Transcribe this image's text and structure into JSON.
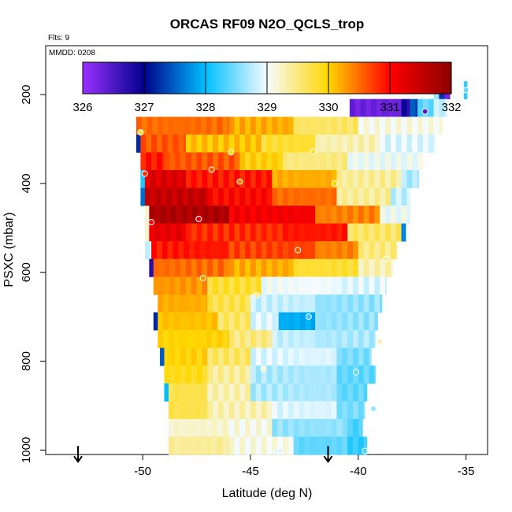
{
  "chart_data": {
    "type": "heatmap",
    "title": "ORCAS RF09 N2O_QCLS_trop",
    "subtitle": "Flts: 9",
    "inset_label": "MMDD: 0208",
    "xlabel": "Latitude (deg N)",
    "ylabel": "PSXC (mbar)",
    "xlim": [
      -54.5,
      -34
    ],
    "ylim": [
      1010,
      90
    ],
    "y_inverted": true,
    "x_ticks": [
      -50,
      -45,
      -40,
      -35
    ],
    "x_tick_labels": [
      "-50",
      "-45",
      "-40",
      "-35"
    ],
    "y_ticks": [
      200,
      400,
      600,
      800,
      1000
    ],
    "y_tick_labels": [
      "200",
      "400",
      "600",
      "800",
      "1000"
    ],
    "colorbar": {
      "min": 326,
      "max": 332,
      "ticks": [
        326,
        327,
        328,
        329,
        330,
        331,
        332
      ],
      "tick_labels": [
        "326",
        "327",
        "328",
        "329",
        "330",
        "331",
        "332"
      ],
      "colors": [
        "#9b30ff",
        "#00008b",
        "#00bfff",
        "#f5fbff",
        "#ffd700",
        "#ff0000",
        "#8b0000"
      ]
    },
    "lat_bin_width": 0.25,
    "pressure_bin_height": 40,
    "rows": [
      {
        "p": 190,
        "segments": [
          [
            -36.5,
            -36.25,
            328.7
          ],
          [
            -36.25,
            -36,
            327.2
          ],
          [
            -36,
            -35.75,
            326.3
          ],
          [
            -35.1,
            -34.95,
            328.3
          ]
        ]
      },
      {
        "p": 230,
        "segments": [
          [
            -40.4,
            -38,
            326.3
          ],
          [
            -38,
            -37.6,
            326.8
          ],
          [
            -37.6,
            -37.25,
            327.4
          ],
          [
            -37.25,
            -36.5,
            328.4
          ],
          [
            -36.5,
            -35.9,
            328.8
          ]
        ]
      },
      {
        "p": 270,
        "segments": [
          [
            -50.3,
            -46,
            330.5
          ],
          [
            -46,
            -43,
            330.2
          ],
          [
            -43,
            -40,
            329.6
          ],
          [
            -40,
            -36.1,
            329.1
          ]
        ]
      },
      {
        "p": 310,
        "segments": [
          [
            -50.3,
            -50.1,
            327.3
          ],
          [
            -50.1,
            -48,
            330.6
          ],
          [
            -48,
            -44.5,
            330.1
          ],
          [
            -44.5,
            -42,
            329.8
          ],
          [
            -42,
            -39,
            329.3
          ],
          [
            -39,
            -36.4,
            328.9
          ]
        ]
      },
      {
        "p": 350,
        "segments": [
          [
            -50.1,
            -49,
            330.9
          ],
          [
            -49,
            -45.5,
            330.6
          ],
          [
            -45.5,
            -43.5,
            330.0
          ],
          [
            -43.5,
            -40.5,
            329.5
          ],
          [
            -40.5,
            -37,
            329.0
          ]
        ]
      },
      {
        "p": 390,
        "segments": [
          [
            -50.1,
            -49.9,
            328.0
          ],
          [
            -49.9,
            -48,
            331.3
          ],
          [
            -48,
            -44,
            330.9
          ],
          [
            -44,
            -41,
            330.2
          ],
          [
            -41,
            -38,
            329.4
          ],
          [
            -38,
            -37.2,
            328.7
          ]
        ]
      },
      {
        "p": 430,
        "segments": [
          [
            -50.1,
            -49.9,
            327.7
          ],
          [
            -49.9,
            -47,
            331.5
          ],
          [
            -47,
            -44,
            331.0
          ],
          [
            -44,
            -41,
            330.5
          ],
          [
            -41,
            -38.5,
            329.4
          ],
          [
            -38.5,
            -37.6,
            328.8
          ]
        ]
      },
      {
        "p": 470,
        "segments": [
          [
            -49.9,
            -49.7,
            329.3
          ],
          [
            -49.7,
            -46,
            331.7
          ],
          [
            -46,
            -42,
            331.1
          ],
          [
            -42,
            -39,
            330.4
          ],
          [
            -39,
            -37.6,
            329.0
          ]
        ]
      },
      {
        "p": 510,
        "segments": [
          [
            -49.9,
            -49.7,
            329.1
          ],
          [
            -49.7,
            -48,
            331.2
          ],
          [
            -48,
            -43.5,
            330.8
          ],
          [
            -43.5,
            -40.5,
            330.9
          ],
          [
            -40.5,
            -38,
            329.6
          ],
          [
            -38,
            -37.8,
            327.8
          ]
        ]
      },
      {
        "p": 550,
        "segments": [
          [
            -49.9,
            -49.6,
            328.9
          ],
          [
            -49.6,
            -46,
            330.9
          ],
          [
            -46,
            -42,
            330.7
          ],
          [
            -42,
            -40,
            330.4
          ],
          [
            -40,
            -38.2,
            329.5
          ]
        ]
      },
      {
        "p": 590,
        "segments": [
          [
            -49.7,
            -49.5,
            326.8
          ],
          [
            -49.5,
            -46,
            330.5
          ],
          [
            -46,
            -43,
            330.2
          ],
          [
            -43,
            -40,
            329.8
          ],
          [
            -40,
            -38.4,
            329.3
          ]
        ]
      },
      {
        "p": 630,
        "segments": [
          [
            -49.5,
            -47,
            330.3
          ],
          [
            -47,
            -44.5,
            329.8
          ],
          [
            -44.5,
            -41,
            329.0
          ],
          [
            -41,
            -38.7,
            328.9
          ]
        ]
      },
      {
        "p": 670,
        "segments": [
          [
            -49.3,
            -47,
            330.2
          ],
          [
            -47,
            -45,
            329.7
          ],
          [
            -45,
            -42,
            328.8
          ],
          [
            -42,
            -38.9,
            328.6
          ]
        ]
      },
      {
        "p": 710,
        "segments": [
          [
            -49.5,
            -49.3,
            327.2
          ],
          [
            -49.3,
            -46.5,
            330.1
          ],
          [
            -46.5,
            -45,
            329.6
          ],
          [
            -45,
            -43.7,
            328.9
          ],
          [
            -43.7,
            -42,
            327.9
          ],
          [
            -42,
            -39.1,
            328.6
          ]
        ]
      },
      {
        "p": 750,
        "segments": [
          [
            -49.3,
            -46,
            330.0
          ],
          [
            -46,
            -44,
            329.5
          ],
          [
            -44,
            -42,
            328.8
          ],
          [
            -42,
            -39.2,
            328.7
          ]
        ]
      },
      {
        "p": 790,
        "segments": [
          [
            -49.2,
            -49,
            327.4
          ],
          [
            -49,
            -47,
            330.0
          ],
          [
            -47,
            -45,
            329.6
          ],
          [
            -45,
            -41,
            328.9
          ],
          [
            -41,
            -39.4,
            328.5
          ]
        ]
      },
      {
        "p": 830,
        "segments": [
          [
            -49,
            -47,
            329.9
          ],
          [
            -47,
            -45,
            329.4
          ],
          [
            -45,
            -41,
            328.7
          ],
          [
            -41,
            -39.2,
            328.4
          ]
        ]
      },
      {
        "p": 870,
        "segments": [
          [
            -49,
            -48.8,
            328.0
          ],
          [
            -48.8,
            -47,
            329.7
          ],
          [
            -47,
            -45,
            329.3
          ],
          [
            -45,
            -41,
            328.7
          ],
          [
            -41,
            -39.6,
            328.4
          ]
        ]
      },
      {
        "p": 910,
        "segments": [
          [
            -48.8,
            -47,
            329.7
          ],
          [
            -47,
            -44,
            329.3
          ],
          [
            -44,
            -41,
            328.9
          ],
          [
            -41,
            -39.7,
            328.5
          ]
        ]
      },
      {
        "p": 950,
        "segments": [
          [
            -48.8,
            -46,
            329.2
          ],
          [
            -46,
            -44,
            329.1
          ],
          [
            -44,
            -40.5,
            328.6
          ],
          [
            -40.5,
            -39.8,
            328.3
          ]
        ]
      },
      {
        "p": 990,
        "segments": [
          [
            -48.8,
            -46,
            329.4
          ],
          [
            -46,
            -43,
            329.1
          ],
          [
            -43,
            -40.5,
            328.4
          ],
          [
            -40.5,
            -39.6,
            328.2
          ]
        ]
      }
    ],
    "sample_points": [
      {
        "lat": -50.1,
        "p": 285,
        "value": 329.8
      },
      {
        "lat": -49.9,
        "p": 378,
        "value": 330.8
      },
      {
        "lat": -49.6,
        "p": 487,
        "value": 331.0
      },
      {
        "lat": -47.4,
        "p": 480,
        "value": 331.3
      },
      {
        "lat": -46.8,
        "p": 369,
        "value": 330.6
      },
      {
        "lat": -45.9,
        "p": 330,
        "value": 329.9
      },
      {
        "lat": -45.5,
        "p": 396,
        "value": 330.4
      },
      {
        "lat": -47.2,
        "p": 613,
        "value": 330.3
      },
      {
        "lat": -44.7,
        "p": 652,
        "value": 329.4
      },
      {
        "lat": -44.4,
        "p": 817,
        "value": 329.2
      },
      {
        "lat": -43.8,
        "p": 1002,
        "value": 328.9
      },
      {
        "lat": -43.6,
        "p": 1002,
        "value": 328.9
      },
      {
        "lat": -42.8,
        "p": 550,
        "value": 330.6
      },
      {
        "lat": -42.3,
        "p": 700,
        "value": 328.2
      },
      {
        "lat": -42.1,
        "p": 328,
        "value": 329.8
      },
      {
        "lat": -41.1,
        "p": 400,
        "value": 330.0
      },
      {
        "lat": -40.1,
        "p": 825,
        "value": 328.4
      },
      {
        "lat": -39.7,
        "p": 1002,
        "value": 328.3
      },
      {
        "lat": -39.3,
        "p": 907,
        "value": 328.6
      },
      {
        "lat": -39.0,
        "p": 756,
        "value": 329.3
      },
      {
        "lat": -38.7,
        "p": 570,
        "value": 329.4
      },
      {
        "lat": -37.4,
        "p": 312,
        "value": 329.0
      },
      {
        "lat": -36.9,
        "p": 238,
        "value": 326.5
      },
      {
        "lat": -36.4,
        "p": 190,
        "value": 328.6
      },
      {
        "lat": -36.0,
        "p": 190,
        "value": 327.0
      },
      {
        "lat": -35.0,
        "p": 190,
        "value": 328.4
      }
    ],
    "arrows": [
      {
        "lat": -53.0,
        "p": 1005,
        "direction": "down"
      },
      {
        "lat": -41.4,
        "p": 1005,
        "direction": "down"
      }
    ]
  }
}
